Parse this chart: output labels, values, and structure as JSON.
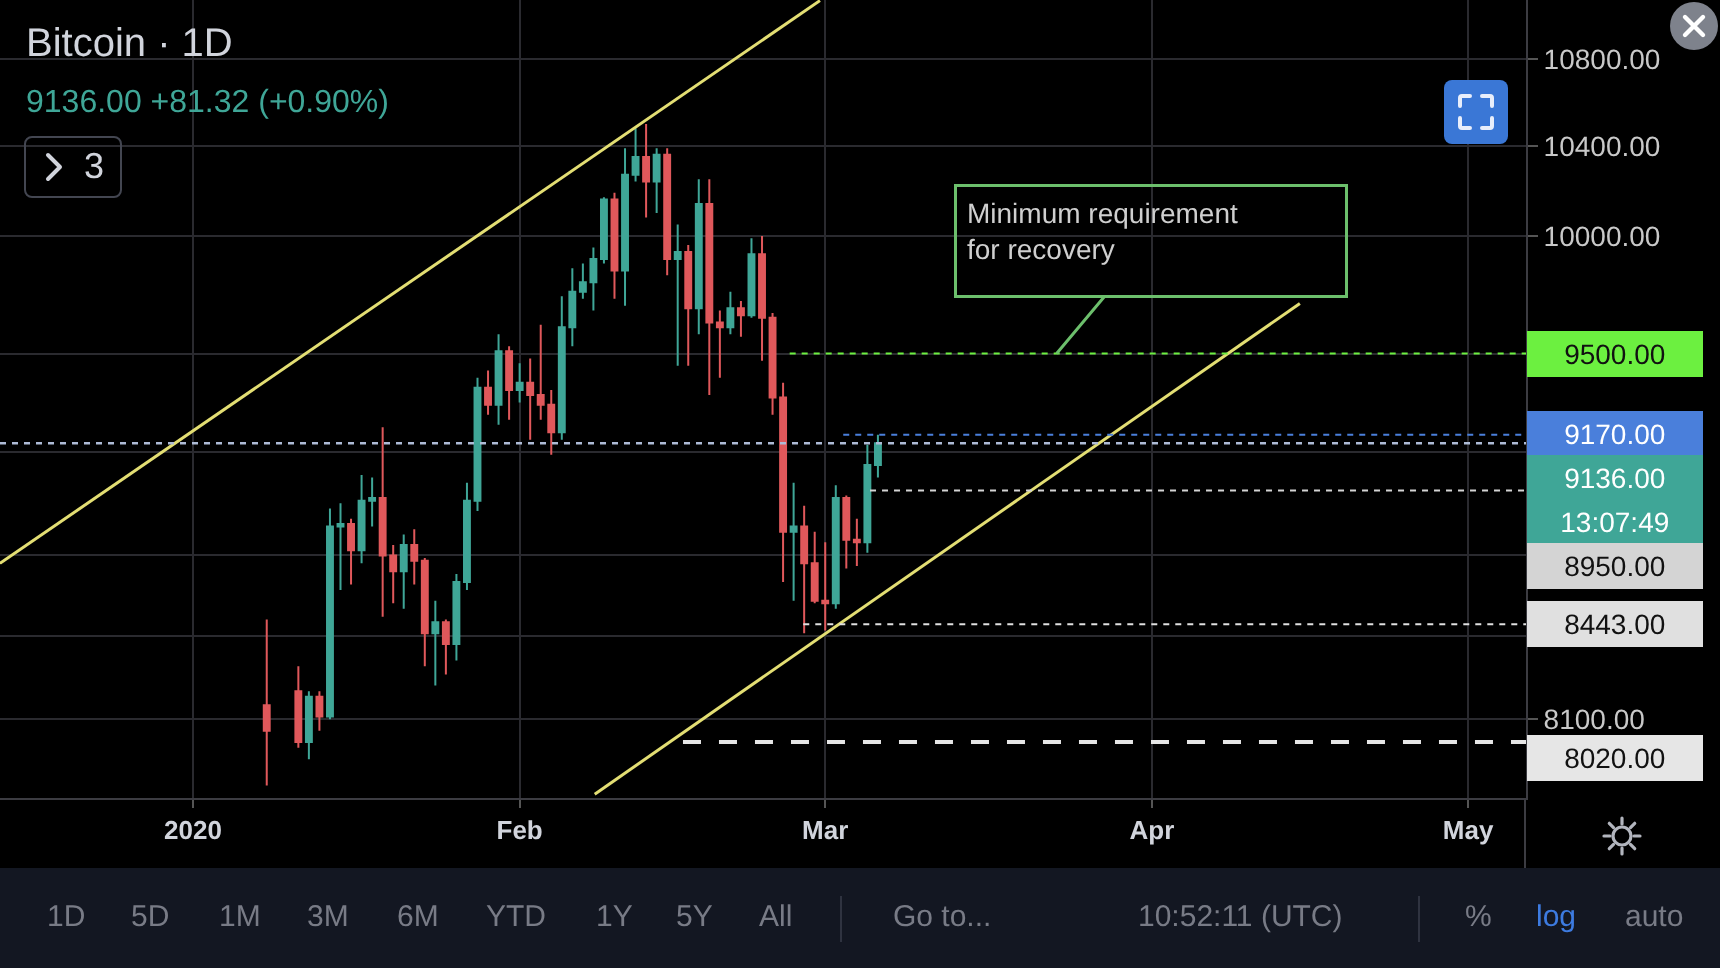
{
  "chart_data": {
    "type": "candlestick",
    "title": "Bitcoin · 1D",
    "subtitle": "9136.00 +81.32 (+0.90%)",
    "x": [
      "2020-01-08",
      "2020-01-11",
      "2020-01-12",
      "2020-01-13",
      "2020-01-14",
      "2020-01-15",
      "2020-01-16",
      "2020-01-17",
      "2020-01-18",
      "2020-01-19",
      "2020-01-20",
      "2020-01-21",
      "2020-01-22",
      "2020-01-23",
      "2020-01-24",
      "2020-01-25",
      "2020-01-26",
      "2020-01-27",
      "2020-01-28",
      "2020-01-29",
      "2020-01-30",
      "2020-01-31",
      "2020-02-01",
      "2020-02-02",
      "2020-02-03",
      "2020-02-04",
      "2020-02-05",
      "2020-02-06",
      "2020-02-07",
      "2020-02-08",
      "2020-02-09",
      "2020-02-10",
      "2020-02-11",
      "2020-02-12",
      "2020-02-13",
      "2020-02-14",
      "2020-02-15",
      "2020-02-16",
      "2020-02-17",
      "2020-02-18",
      "2020-02-19",
      "2020-02-20",
      "2020-02-21",
      "2020-02-22",
      "2020-02-23",
      "2020-02-24",
      "2020-02-25",
      "2020-02-26",
      "2020-02-27",
      "2020-02-28",
      "2020-02-29",
      "2020-03-01",
      "2020-03-02",
      "2020-03-03",
      "2020-03-04",
      "2020-03-05",
      "2020-03-06"
    ],
    "ohlc": [
      [
        8150,
        8460,
        7870,
        8060
      ],
      [
        8200,
        8290,
        8000,
        8020
      ],
      [
        8020,
        8200,
        7960,
        8180
      ],
      [
        8180,
        8200,
        8060,
        8110
      ],
      [
        8110,
        8880,
        8100,
        8810
      ],
      [
        8810,
        8900,
        8570,
        8820
      ],
      [
        8820,
        8840,
        8590,
        8720
      ],
      [
        8720,
        9010,
        8670,
        8910
      ],
      [
        8910,
        9000,
        8810,
        8920
      ],
      [
        8920,
        9200,
        8470,
        8700
      ],
      [
        8700,
        8740,
        8520,
        8640
      ],
      [
        8640,
        8780,
        8500,
        8740
      ],
      [
        8740,
        8800,
        8590,
        8680
      ],
      [
        8680,
        8690,
        8290,
        8410
      ],
      [
        8410,
        8530,
        8220,
        8450
      ],
      [
        8450,
        8460,
        8260,
        8370
      ],
      [
        8370,
        8630,
        8310,
        8600
      ],
      [
        8600,
        8980,
        8570,
        8910
      ],
      [
        8910,
        9400,
        8870,
        9360
      ],
      [
        9360,
        9430,
        9250,
        9290
      ],
      [
        9290,
        9580,
        9210,
        9510
      ],
      [
        9510,
        9530,
        9230,
        9350
      ],
      [
        9350,
        9460,
        9300,
        9380
      ],
      [
        9380,
        9480,
        9150,
        9330
      ],
      [
        9330,
        9620,
        9230,
        9290
      ],
      [
        9290,
        9350,
        9090,
        9180
      ],
      [
        9180,
        9740,
        9150,
        9610
      ],
      [
        9610,
        9860,
        9530,
        9760
      ],
      [
        9760,
        9880,
        9730,
        9800
      ],
      [
        9800,
        9950,
        9680,
        9900
      ],
      [
        9900,
        10170,
        9880,
        10160
      ],
      [
        10160,
        10190,
        9730,
        9850
      ],
      [
        9850,
        10390,
        9700,
        10270
      ],
      [
        10270,
        10480,
        10240,
        10350
      ],
      [
        10350,
        10500,
        10080,
        10240
      ],
      [
        10240,
        10390,
        10100,
        10360
      ],
      [
        10360,
        10390,
        9830,
        9900
      ],
      [
        9900,
        10050,
        9450,
        9930
      ],
      [
        9930,
        9960,
        9450,
        9690
      ],
      [
        9690,
        10250,
        9580,
        10140
      ],
      [
        10140,
        10250,
        9330,
        9630
      ],
      [
        9630,
        9680,
        9400,
        9610
      ],
      [
        9610,
        9760,
        9580,
        9690
      ],
      [
        9690,
        9720,
        9570,
        9660
      ],
      [
        9660,
        9990,
        9650,
        9920
      ],
      [
        9920,
        10000,
        9470,
        9650
      ],
      [
        9650,
        9670,
        9250,
        9320
      ],
      [
        9320,
        9380,
        8600,
        8790
      ],
      [
        8790,
        8980,
        8530,
        8810
      ],
      [
        8810,
        8890,
        8410,
        8670
      ],
      [
        8670,
        8790,
        8520,
        8530
      ],
      [
        8530,
        8750,
        8420,
        8520
      ],
      [
        8520,
        8970,
        8500,
        8920
      ],
      [
        8920,
        8930,
        8650,
        8760
      ],
      [
        8760,
        8840,
        8660,
        8750
      ],
      [
        8750,
        9130,
        8710,
        9050
      ],
      [
        9050,
        9170,
        9000,
        9136
      ]
    ],
    "colors": [
      "#e0585b",
      "#e0585b",
      "#3fa697",
      "#e0585b",
      "#3fa697",
      "#3fa697",
      "#e0585b",
      "#3fa697",
      "#3fa697",
      "#e0585b",
      "#e0585b",
      "#3fa697",
      "#e0585b",
      "#e0585b",
      "#3fa697",
      "#e0585b",
      "#3fa697",
      "#3fa697",
      "#3fa697",
      "#e0585b",
      "#3fa697",
      "#e0585b",
      "#3fa697",
      "#e0585b",
      "#e0585b",
      "#e0585b",
      "#3fa697",
      "#3fa697",
      "#3fa697",
      "#3fa697",
      "#3fa697",
      "#e0585b",
      "#3fa697",
      "#3fa697",
      "#e0585b",
      "#3fa697",
      "#e0585b",
      "#3fa697",
      "#e0585b",
      "#3fa697",
      "#e0585b",
      "#e0585b",
      "#3fa697",
      "#e0585b",
      "#3fa697",
      "#e0585b",
      "#e0585b",
      "#e0585b",
      "#3fa697",
      "#e0585b",
      "#e0585b",
      "#e0585b",
      "#3fa697",
      "#e0585b",
      "#e0585b",
      "#3fa697",
      "#3fa697"
    ],
    "series": [
      {
        "type": "line",
        "color": "#e3de73",
        "x": [
          "2019-12-13T16:30",
          "2020-02-29T12:00"
        ],
        "values": [
          8670,
          11080
        ]
      },
      {
        "type": "line",
        "color": "#e3de73",
        "x": [
          "2020-02-08T03:00",
          "2020-04-15T01:00"
        ],
        "values": [
          7840,
          9710
        ]
      },
      {
        "type": "line",
        "color": "#6cf040",
        "line_style": "dotted",
        "x": [
          "2020-02-26T15:00",
          "2020-05-06T12:00"
        ],
        "values": [
          9500,
          9500
        ],
        "value_labels": [
          null,
          "9500.00"
        ]
      },
      {
        "type": "line",
        "color": "#4a7fdb",
        "line_style": "dotted",
        "x": [
          "2020-03-02T17:00",
          "2020-05-06T12:00"
        ],
        "values": [
          9170,
          9170
        ],
        "value_labels": [
          null,
          "9170.00"
        ]
      },
      {
        "type": "line",
        "color": "#d4d4d4",
        "line_style": "dotted",
        "x": [
          "2020-03-05T06:00",
          "2020-05-06T12:00"
        ],
        "values": [
          8950,
          8950
        ],
        "value_labels": [
          null,
          "8950.00"
        ]
      },
      {
        "type": "line",
        "color": "#e0e0e0",
        "line_style": "dotted",
        "x": [
          "2020-02-27T22:00",
          "2020-05-06T12:00"
        ],
        "values": [
          8443,
          8443
        ],
        "value_labels": [
          null,
          "8443.00"
        ]
      },
      {
        "type": "line",
        "color": "#e6e6e6",
        "line_style": "dashed",
        "x": [
          "2020-02-16T12:00",
          "2020-05-06T12:00"
        ],
        "values": [
          8020,
          8020
        ],
        "value_labels": [
          null,
          "8020.00"
        ]
      }
    ],
    "ref_lines": [
      {
        "axis": "y",
        "value": 9136,
        "label": "9136.00\n13:07:49",
        "color": "#aebbd6",
        "line_style": "dotted"
      }
    ],
    "annotations": [
      "3",
      "1D",
      "5D",
      "1M",
      "3M",
      "6M",
      "YTD",
      "1Y",
      "5Y",
      "All",
      "Go to...",
      "10:52:11 (UTC)",
      "%",
      "log",
      "auto",
      {
        "text": "Minimum requirement\nfor recovery",
        "x": "2020-03-22T23:00",
        "y": 9500
      }
    ],
    "xlim": [
      "2019-12-13T16:30",
      "2020-05-06T12:00"
    ],
    "xticks": [
      {
        "value": "2020-01-01",
        "label": "2020"
      },
      {
        "value": "2020-02-01",
        "label": "Feb"
      },
      {
        "value": "2020-03-01",
        "label": "Mar"
      },
      {
        "value": "2020-04-01",
        "label": "Apr"
      },
      {
        "value": "2020-05-01",
        "label": "May"
      }
    ],
    "ylim": [
      7827,
      11083
    ],
    "yticks": [
      {
        "value": 8100,
        "label": "8100.00"
      },
      {
        "value": 8400,
        "label": null
      },
      {
        "value": 8700,
        "label": null
      },
      {
        "value": 9100,
        "label": null
      },
      {
        "value": 9500,
        "label": null
      },
      {
        "value": 10000,
        "label": "10000.00"
      },
      {
        "value": 10400,
        "label": "10400.00"
      },
      {
        "value": 10800,
        "label": "10800.00"
      }
    ],
    "log": true,
    "grid": true
  }
}
